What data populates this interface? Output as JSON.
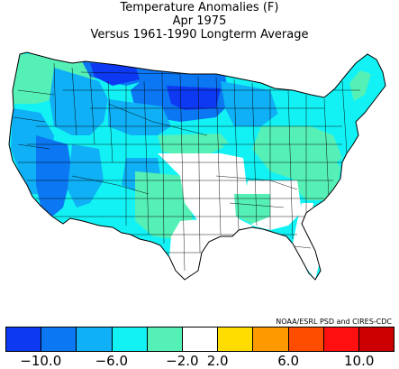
{
  "title": {
    "line1": "Temperature Anomalies (F)",
    "line2": "Apr 1975",
    "line3": "Versus 1961-1990 Longterm Average"
  },
  "credit": "NOAA/ESRL PSD and CIRES-CDC",
  "legend": {
    "bins": [
      {
        "color": "#0d39f2"
      },
      {
        "color": "#0c77f2"
      },
      {
        "color": "#0fb0f5"
      },
      {
        "color": "#12f2f5"
      },
      {
        "color": "#55f0b6"
      },
      {
        "color": "#ffffff"
      },
      {
        "color": "#ffdd00"
      },
      {
        "color": "#ff9900"
      },
      {
        "color": "#ff4d00"
      },
      {
        "color": "#ff0f0f"
      },
      {
        "color": "#cc0000"
      }
    ],
    "ticks": [
      "-10.0",
      "-6.0",
      "-2.0",
      "2.0",
      "6.0",
      "10.0"
    ]
  }
}
